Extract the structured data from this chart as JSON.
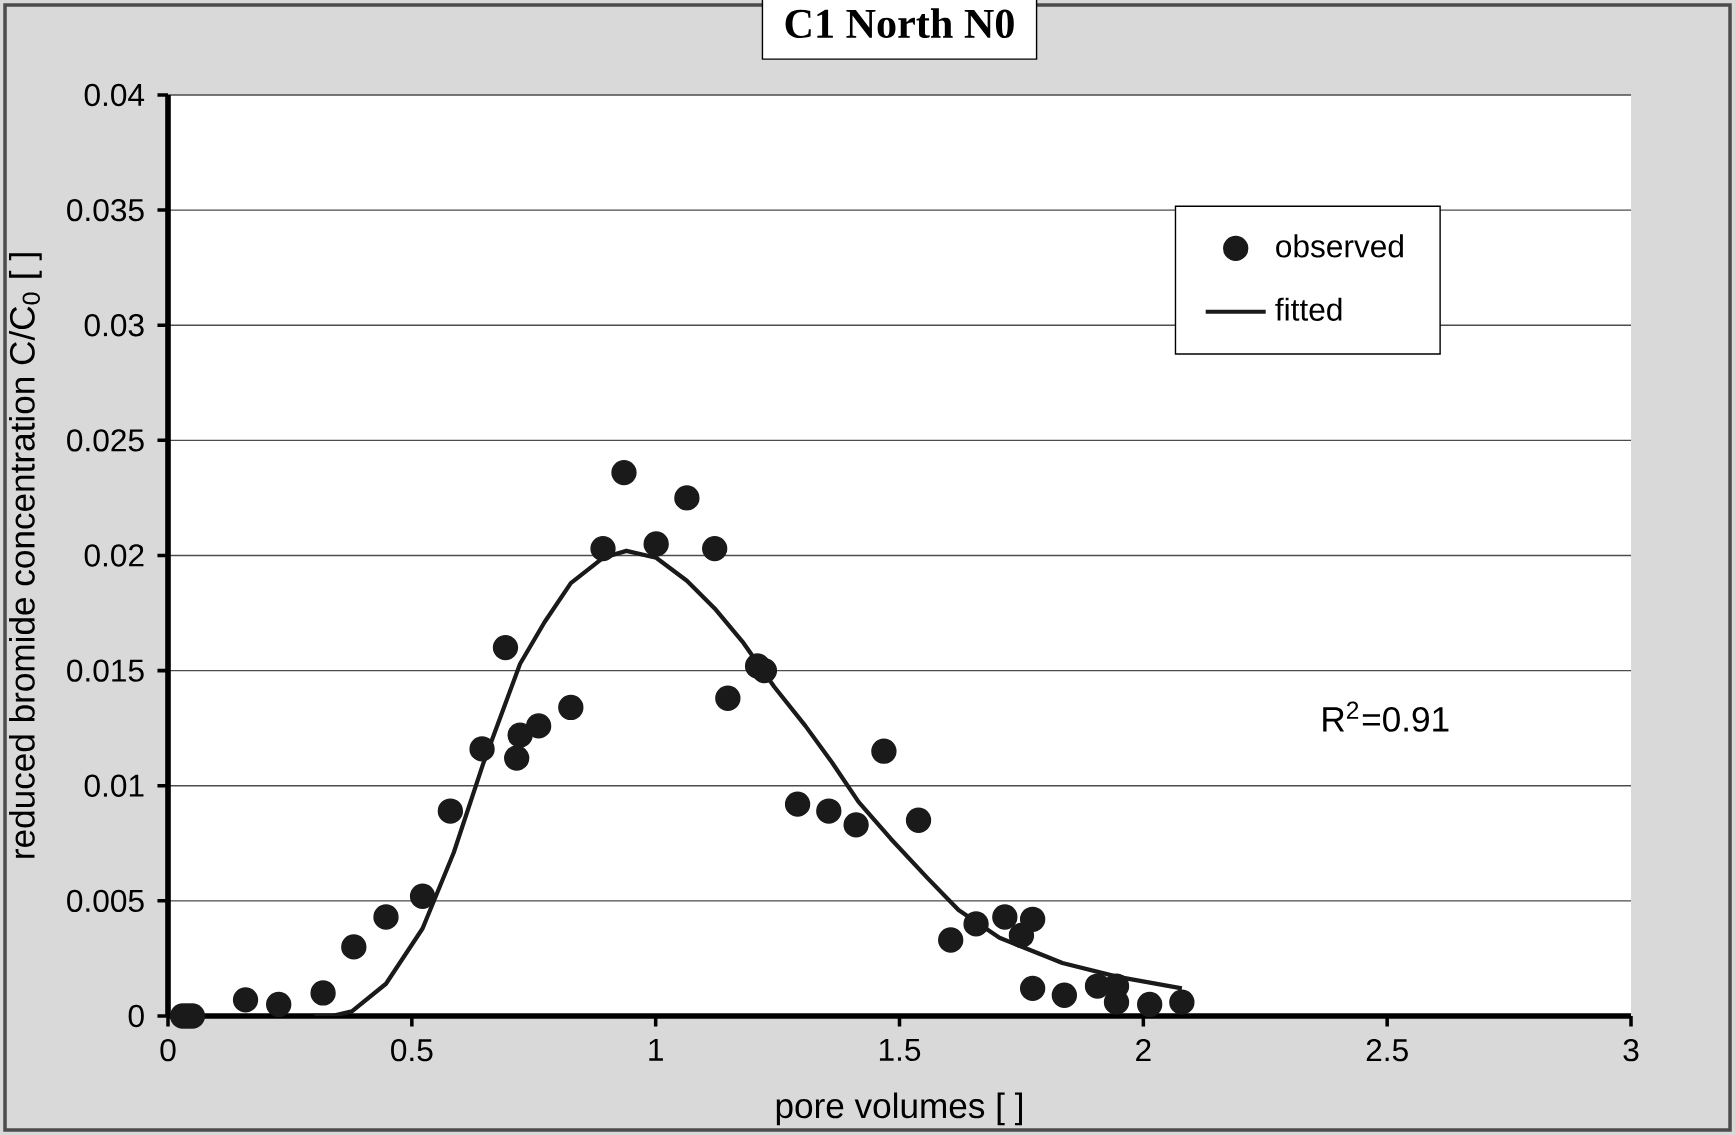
{
  "chart_data": {
    "type": "scatter",
    "title": "C1 North N0",
    "xlabel": "pore volumes [ ]",
    "ylabel": "reduced bromide concentration C/C$_{0}$ [ ]",
    "xlim": [
      0,
      3
    ],
    "xticks": [
      0,
      0.5,
      1,
      1.5,
      2,
      2.5,
      3
    ],
    "ylim": [
      0,
      0.04
    ],
    "yticks": [
      0,
      0.005,
      0.01,
      0.015,
      0.02,
      0.025,
      0.03,
      0.035,
      0.04
    ],
    "grid": "y",
    "legend": "top right",
    "annotations": [
      "R$^{2}$=0.91"
    ],
    "series": [
      {
        "name": "observed",
        "type": "scatter",
        "marker": "circle",
        "color": "#1a1a1a",
        "x": [
          0.03,
          0.04,
          0.05,
          0.159,
          0.227,
          0.318,
          0.381,
          0.447,
          0.522,
          0.579,
          0.644,
          0.692,
          0.715,
          0.722,
          0.76,
          0.826,
          0.892,
          0.935,
          1.001,
          1.064,
          1.121,
          1.148,
          1.209,
          1.223,
          1.291,
          1.355,
          1.411,
          1.468,
          1.539,
          1.605,
          1.657,
          1.716,
          1.75,
          1.773,
          1.773,
          1.838,
          1.906,
          1.945,
          1.945,
          2.013,
          2.079
        ],
        "values": [
          0,
          0,
          0,
          0.0007,
          0.0005,
          0.001,
          0.003,
          0.0043,
          0.0052,
          0.0089,
          0.0116,
          0.016,
          0.0112,
          0.0122,
          0.0126,
          0.0134,
          0.0203,
          0.0236,
          0.0205,
          0.0225,
          0.0203,
          0.0138,
          0.0152,
          0.015,
          0.0092,
          0.0089,
          0.0083,
          0.0115,
          0.0085,
          0.0033,
          0.004,
          0.0043,
          0.0035,
          0.0042,
          0.0012,
          0.0009,
          0.0013,
          0.0013,
          0.0006,
          0.0005,
          0.0006
        ]
      },
      {
        "name": "fitted",
        "type": "line",
        "marker": "none",
        "color": "#1a1a1a",
        "x": [
          0.3,
          0.336,
          0.377,
          0.447,
          0.522,
          0.586,
          0.647,
          0.722,
          0.772,
          0.826,
          0.892,
          0.94,
          1.001,
          1.064,
          1.121,
          1.18,
          1.243,
          1.307,
          1.362,
          1.416,
          1.482,
          1.557,
          1.621,
          1.705,
          1.834,
          1.948,
          2.079
        ],
        "values": [
          0,
          0,
          0.0002,
          0.0014,
          0.0038,
          0.0071,
          0.011,
          0.0153,
          0.0171,
          0.0188,
          0.0199,
          0.0202,
          0.0199,
          0.0189,
          0.0177,
          0.0162,
          0.0143,
          0.0126,
          0.011,
          0.0093,
          0.0077,
          0.006,
          0.0046,
          0.0034,
          0.0023,
          0.0017,
          0.0012
        ]
      }
    ]
  }
}
